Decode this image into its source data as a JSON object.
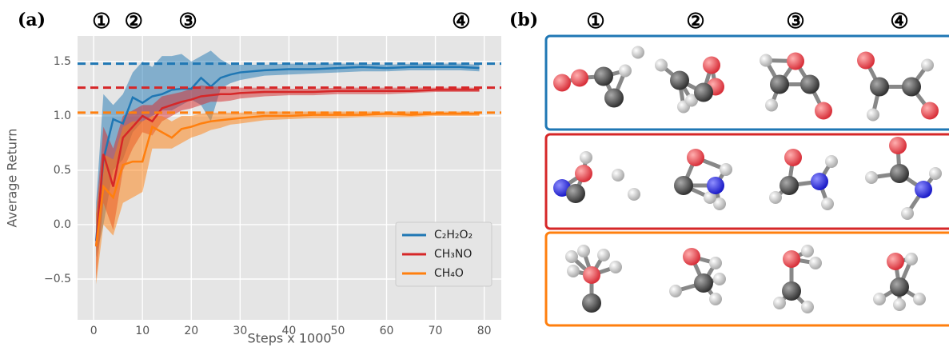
{
  "panel_a": {
    "label": "(a)"
  },
  "chart_data": {
    "type": "line",
    "xlabel": "Steps x 1000",
    "ylabel": "Average Return",
    "xlim": [
      -3.3,
      83.5
    ],
    "ylim": [
      -0.875,
      1.735
    ],
    "xticks": [
      0,
      10,
      20,
      30,
      40,
      50,
      60,
      70,
      80
    ],
    "yticks": [
      {
        "value": -0.5,
        "label": "−0.5"
      },
      {
        "value": 0,
        "label": "0.0"
      },
      {
        "value": 0.5,
        "label": "0.5"
      },
      {
        "value": 1,
        "label": "1.0"
      },
      {
        "value": 1.5,
        "label": "1.5"
      }
    ],
    "grid": true,
    "legend": "lower right",
    "annotations": [
      {
        "text": "①",
        "x": 1.6
      },
      {
        "text": "②",
        "x": 8.2
      },
      {
        "text": "③",
        "x": 19.3
      },
      {
        "text": "④",
        "x": 75.3
      }
    ],
    "x": [
      0.5,
      2,
      4,
      6,
      8,
      10,
      12,
      14,
      16,
      18,
      20,
      22,
      24,
      26,
      28,
      30,
      35,
      40,
      45,
      50,
      55,
      60,
      65,
      70,
      75,
      79
    ],
    "series": [
      {
        "name": "C₂H₂O₂",
        "color": "#1f77b4",
        "reference": 1.48,
        "values": [
          -0.15,
          0.6,
          0.97,
          0.93,
          1.17,
          1.12,
          1.18,
          1.2,
          1.24,
          1.25,
          1.25,
          1.35,
          1.27,
          1.35,
          1.38,
          1.4,
          1.42,
          1.43,
          1.43,
          1.44,
          1.45,
          1.44,
          1.45,
          1.45,
          1.45,
          1.44
        ],
        "upper": [
          0.2,
          1.2,
          1.1,
          1.2,
          1.4,
          1.5,
          1.45,
          1.55,
          1.55,
          1.57,
          1.5,
          1.55,
          1.6,
          1.52,
          1.47,
          1.47,
          1.47,
          1.48,
          1.48,
          1.48,
          1.48,
          1.47,
          1.48,
          1.48,
          1.48,
          1.47
        ],
        "lower": [
          -0.3,
          0.0,
          0.5,
          0.6,
          0.85,
          0.95,
          1.0,
          1.05,
          1.05,
          1.1,
          1.15,
          1.1,
          0.95,
          1.25,
          1.3,
          1.33,
          1.37,
          1.38,
          1.39,
          1.4,
          1.41,
          1.41,
          1.42,
          1.42,
          1.42,
          1.41
        ]
      },
      {
        "name": "CH₃NO",
        "color": "#d62728",
        "reference": 1.26,
        "values": [
          -0.2,
          0.65,
          0.35,
          0.8,
          0.9,
          1.0,
          0.95,
          1.07,
          1.1,
          1.13,
          1.15,
          1.18,
          1.19,
          1.2,
          1.2,
          1.21,
          1.22,
          1.22,
          1.22,
          1.23,
          1.23,
          1.23,
          1.23,
          1.24,
          1.24,
          1.24
        ],
        "upper": [
          0.1,
          0.9,
          0.7,
          1.0,
          1.05,
          1.1,
          1.1,
          1.18,
          1.2,
          1.22,
          1.25,
          1.28,
          1.27,
          1.27,
          1.27,
          1.26,
          1.26,
          1.25,
          1.25,
          1.26,
          1.26,
          1.26,
          1.26,
          1.26,
          1.26,
          1.26
        ],
        "lower": [
          -0.5,
          0.2,
          -0.05,
          0.5,
          0.7,
          0.85,
          0.82,
          0.95,
          1.0,
          1.05,
          1.07,
          1.1,
          1.13,
          1.13,
          1.14,
          1.16,
          1.18,
          1.19,
          1.19,
          1.2,
          1.2,
          1.2,
          1.21,
          1.22,
          1.22,
          1.22
        ]
      },
      {
        "name": "CH₄O",
        "color": "#ff7f0e",
        "reference": 1.03,
        "values": [
          -0.2,
          0.35,
          0.25,
          0.55,
          0.58,
          0.58,
          0.9,
          0.85,
          0.8,
          0.88,
          0.9,
          0.93,
          0.95,
          0.96,
          0.97,
          0.98,
          1.0,
          1.0,
          1.01,
          1.01,
          1.01,
          1.02,
          1.01,
          1.02,
          1.02,
          1.02
        ],
        "upper": [
          0.1,
          0.65,
          0.6,
          0.9,
          0.95,
          0.95,
          1.0,
          1.0,
          0.95,
          1.0,
          1.0,
          1.02,
          1.03,
          1.03,
          1.03,
          1.03,
          1.04,
          1.04,
          1.04,
          1.04,
          1.04,
          1.04,
          1.04,
          1.04,
          1.04,
          1.04
        ],
        "lower": [
          -0.55,
          0.0,
          -0.1,
          0.2,
          0.25,
          0.3,
          0.7,
          0.7,
          0.7,
          0.75,
          0.8,
          0.83,
          0.87,
          0.89,
          0.92,
          0.93,
          0.96,
          0.97,
          0.98,
          0.98,
          0.99,
          0.99,
          0.99,
          1.0,
          1.0,
          1.0
        ]
      }
    ]
  },
  "panel_b": {
    "label": "(b)",
    "columns": [
      "①",
      "②",
      "③",
      "④"
    ]
  }
}
